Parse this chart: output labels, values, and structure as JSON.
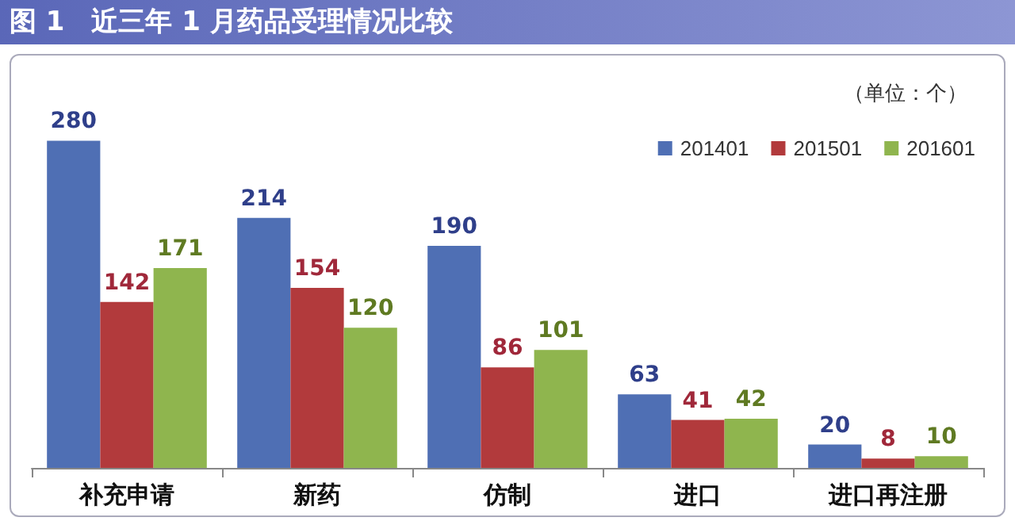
{
  "chart_data": {
    "type": "bar",
    "title": "图 1　近三年 1 月药品受理情况比较",
    "annotations": [
      "（单位：个）"
    ],
    "categories": [
      "补充申请",
      "新药",
      "仿制",
      "进口",
      "进口再注册"
    ],
    "series": [
      {
        "name": "201401",
        "color": "#4f6fb4",
        "values": [
          280,
          214,
          190,
          63,
          20
        ]
      },
      {
        "name": "201501",
        "color": "#b23a3c",
        "values": [
          142,
          154,
          86,
          41,
          8
        ]
      },
      {
        "name": "201601",
        "color": "#8fb54e",
        "values": [
          171,
          120,
          101,
          42,
          10
        ]
      }
    ],
    "data_labels": true,
    "legend": "top right"
  }
}
